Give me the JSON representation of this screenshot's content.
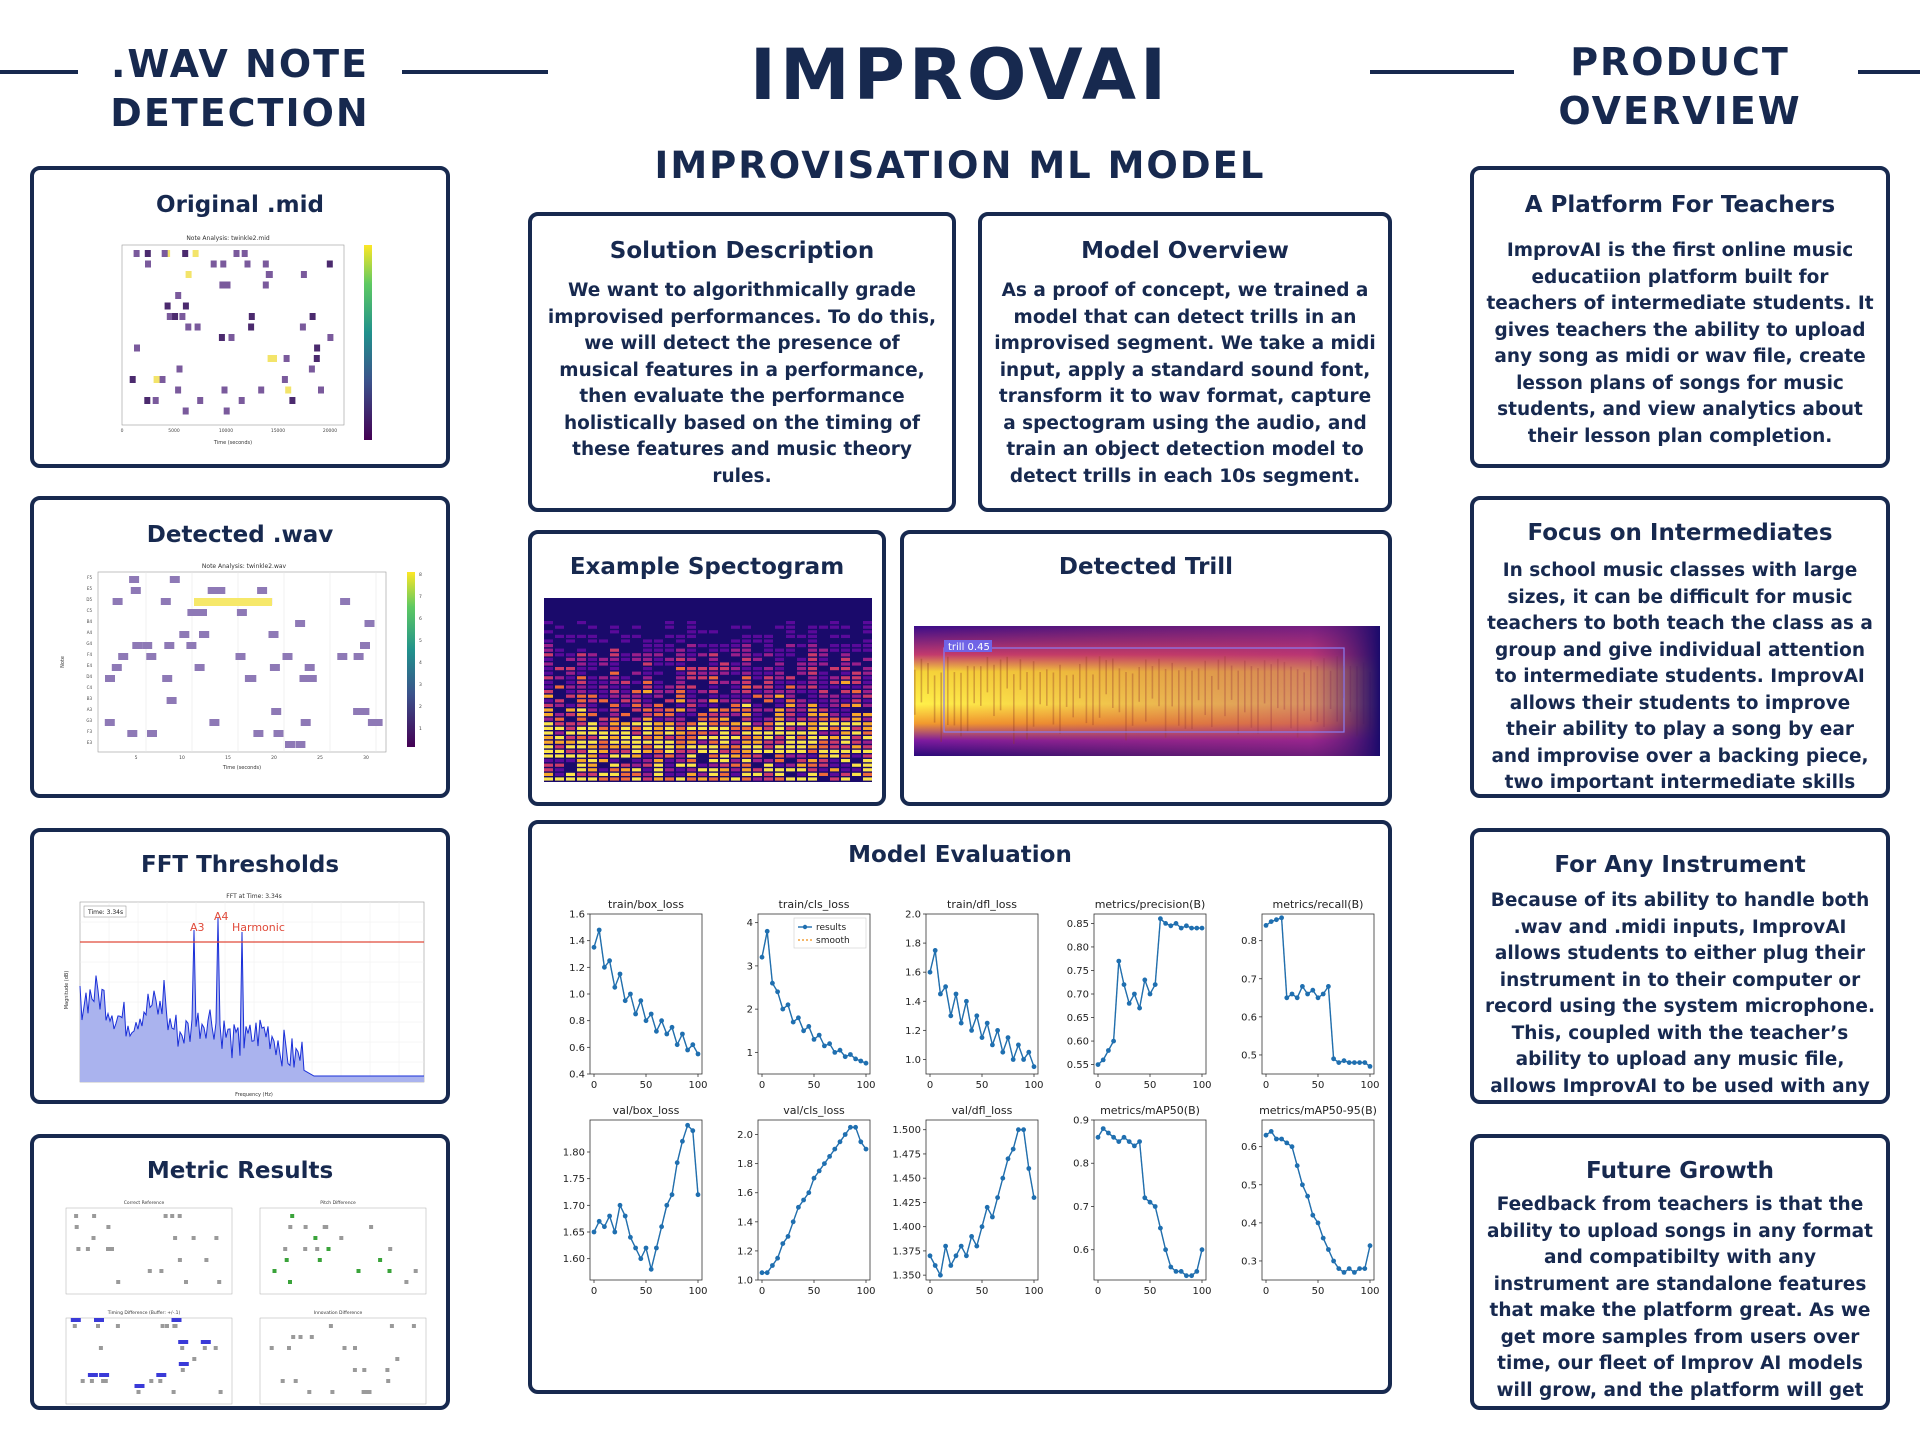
{
  "header": {
    "title": "IMPROVAI",
    "subtitle": "IMPROVISATION ML MODEL",
    "left_heading": [
      ".WAV NOTE",
      "DETECTION"
    ],
    "right_heading": [
      "PRODUCT",
      "OVERVIEW"
    ]
  },
  "left_panels": {
    "original_mid": {
      "title": "Original .mid",
      "plot_title": "Note Analysis: twinkle2.mid",
      "xlabel": "Time (seconds)",
      "ticks_x": [
        "0",
        "5000",
        "10000",
        "15000",
        "20000"
      ]
    },
    "detected_wav": {
      "title": "Detected .wav",
      "plot_title": "Note Analysis: twinkle2.wav",
      "xlabel": "Time (seconds)",
      "ylabel": "Note",
      "ticks_x": [
        "5",
        "10",
        "15",
        "20",
        "25",
        "30"
      ],
      "ticks_y": [
        "F5",
        "E5",
        "D5",
        "C5",
        "B4",
        "A4",
        "G4",
        "F4",
        "E4",
        "D4",
        "C4",
        "B3",
        "A3",
        "G3",
        "F3",
        "E3"
      ],
      "cbar_ticks": [
        "8",
        "7",
        "6",
        "5",
        "4",
        "3",
        "2",
        "1"
      ]
    },
    "fft": {
      "title": "FFT Thresholds",
      "plot_title": "FFT at Time: 3.34s",
      "time_box": "Time: 3.34s",
      "label_a3": "A3",
      "label_a4": "A4",
      "label_harmonic": "Harmonic",
      "xlabel": "Frequency (Hz)",
      "ylabel": "Magnitude (dB)"
    },
    "metrics": {
      "title": "Metric Results",
      "sub_titles": [
        "Correct Reference",
        "Pitch Difference",
        "Timing Difference (Buffer: +/-.1)",
        "Innovation Difference"
      ]
    }
  },
  "center": {
    "solution": {
      "title": "Solution Description",
      "body": "We want to algorithmically grade improvised performances. To do this, we will detect the presence of musical features in a performance, then evaluate the performance holistically based on the timing of these features and music theory rules."
    },
    "model_overview": {
      "title": "Model Overview",
      "body": "As a proof of concept, we trained a model that can detect trills in an improvised segment. We take a midi input, apply a standard sound font, transform it to wav format, capture a spectogram using the audio, and train an object detection model to detect trills in each 10s segment."
    },
    "spectrogram": {
      "title": "Example Spectogram"
    },
    "trill": {
      "title": "Detected Trill",
      "box_label": "trill 0.45"
    },
    "evaluation": {
      "title": "Model Evaluation",
      "legend_results": "results",
      "legend_smooth": "smooth"
    }
  },
  "right_panels": {
    "teachers": {
      "title": "A Platform For Teachers",
      "body": "ImprovAI is the first online music educatiion platform built for teachers of intermediate students. It gives teachers the ability to upload any song as midi or wav file, create lesson plans of songs for music students, and view analytics about their lesson plan completion."
    },
    "intermediates": {
      "title": "Focus on Intermediates",
      "body": "In school music classes with large sizes, it can be difficult for music teachers to both teach the class as a group and give individual attention to intermediate students. ImprovAI allows their students to improve their ability to play a song by ear and improvise over a backing piece, two important intermediate skills"
    },
    "instrument": {
      "title": "For Any Instrument",
      "body": "Because of its ability to handle both .wav and .midi inputs, ImprovAI allows students to either plug their instrument in to their computer or record using the system microphone. This, coupled with the teacher’s ability to upload any music file, allows ImprovAI to be used with any instrument"
    },
    "growth": {
      "title": "Future Growth",
      "body": "Feedback from teachers is that the ability to upload songs in any format and compatibilty with any instrument are standalone features that make the platform great. As we get more samples from users over time, our fleet of Improv AI models will grow, and the platform will get even better."
    }
  },
  "chart_data": [
    {
      "type": "line",
      "title": "train/box_loss",
      "x": [
        0,
        5,
        10,
        15,
        20,
        25,
        30,
        35,
        40,
        45,
        50,
        55,
        60,
        65,
        70,
        75,
        80,
        85,
        90,
        95,
        100
      ],
      "values": [
        1.35,
        1.48,
        1.2,
        1.25,
        1.05,
        1.15,
        0.95,
        1.0,
        0.85,
        0.95,
        0.8,
        0.85,
        0.72,
        0.8,
        0.7,
        0.75,
        0.62,
        0.7,
        0.58,
        0.62,
        0.55
      ],
      "ylim": [
        0.4,
        1.6
      ],
      "yticks": [
        "1.6",
        "1.4",
        "1.2",
        "1.0",
        "0.8",
        "0.6",
        "0.4"
      ],
      "xticks": [
        "0",
        "50",
        "100"
      ]
    },
    {
      "type": "line",
      "title": "train/cls_loss",
      "x": [
        0,
        5,
        10,
        15,
        20,
        25,
        30,
        35,
        40,
        45,
        50,
        55,
        60,
        65,
        70,
        75,
        80,
        85,
        90,
        95,
        100
      ],
      "values": [
        3.2,
        3.8,
        2.6,
        2.4,
        2.0,
        2.1,
        1.7,
        1.8,
        1.5,
        1.6,
        1.3,
        1.4,
        1.15,
        1.2,
        1.0,
        1.05,
        0.9,
        0.95,
        0.85,
        0.8,
        0.75
      ],
      "ylim": [
        0.5,
        4.2
      ],
      "yticks": [
        "4",
        "3",
        "2",
        "1"
      ],
      "xticks": [
        "0",
        "50",
        "100"
      ],
      "series_names": [
        "results",
        "smooth"
      ]
    },
    {
      "type": "line",
      "title": "train/dfl_loss",
      "x": [
        0,
        5,
        10,
        15,
        20,
        25,
        30,
        35,
        40,
        45,
        50,
        55,
        60,
        65,
        70,
        75,
        80,
        85,
        90,
        95,
        100
      ],
      "values": [
        1.6,
        1.75,
        1.45,
        1.5,
        1.3,
        1.45,
        1.25,
        1.4,
        1.2,
        1.3,
        1.15,
        1.25,
        1.1,
        1.2,
        1.05,
        1.15,
        1.0,
        1.1,
        1.0,
        1.05,
        0.95
      ],
      "ylim": [
        0.9,
        2.0
      ],
      "yticks": [
        "2.0",
        "1.8",
        "1.6",
        "1.4",
        "1.2",
        "1.0"
      ],
      "xticks": [
        "0",
        "50",
        "100"
      ]
    },
    {
      "type": "line",
      "title": "metrics/precision(B)",
      "x": [
        0,
        5,
        10,
        15,
        20,
        25,
        30,
        35,
        40,
        45,
        50,
        55,
        60,
        65,
        70,
        75,
        80,
        85,
        90,
        95,
        100
      ],
      "values": [
        0.55,
        0.56,
        0.58,
        0.6,
        0.77,
        0.72,
        0.68,
        0.7,
        0.67,
        0.73,
        0.7,
        0.72,
        0.86,
        0.85,
        0.845,
        0.85,
        0.84,
        0.845,
        0.84,
        0.84,
        0.84
      ],
      "ylim": [
        0.53,
        0.87
      ],
      "yticks": [
        "0.85",
        "0.80",
        "0.75",
        "0.70",
        "0.65",
        "0.60",
        "0.55"
      ],
      "xticks": [
        "0",
        "50",
        "100"
      ]
    },
    {
      "type": "line",
      "title": "metrics/recall(B)",
      "x": [
        0,
        5,
        10,
        15,
        20,
        25,
        30,
        35,
        40,
        45,
        50,
        55,
        60,
        65,
        70,
        75,
        80,
        85,
        90,
        95,
        100
      ],
      "values": [
        0.84,
        0.85,
        0.855,
        0.86,
        0.65,
        0.66,
        0.65,
        0.68,
        0.66,
        0.67,
        0.65,
        0.66,
        0.68,
        0.49,
        0.48,
        0.485,
        0.48,
        0.48,
        0.48,
        0.48,
        0.47
      ],
      "ylim": [
        0.45,
        0.87
      ],
      "yticks": [
        "0.8",
        "0.7",
        "0.6",
        "0.5"
      ],
      "xticks": [
        "0",
        "50",
        "100"
      ]
    },
    {
      "type": "line",
      "title": "val/box_loss",
      "x": [
        0,
        5,
        10,
        15,
        20,
        25,
        30,
        35,
        40,
        45,
        50,
        55,
        60,
        65,
        70,
        75,
        80,
        85,
        90,
        95,
        100
      ],
      "values": [
        1.65,
        1.67,
        1.66,
        1.68,
        1.65,
        1.7,
        1.68,
        1.64,
        1.62,
        1.6,
        1.62,
        1.58,
        1.62,
        1.66,
        1.7,
        1.72,
        1.78,
        1.82,
        1.85,
        1.84,
        1.72
      ],
      "ylim": [
        1.56,
        1.86
      ],
      "yticks": [
        "1.80",
        "1.75",
        "1.70",
        "1.65",
        "1.60"
      ],
      "xticks": [
        "0",
        "50",
        "100"
      ]
    },
    {
      "type": "line",
      "title": "val/cls_loss",
      "x": [
        0,
        5,
        10,
        15,
        20,
        25,
        30,
        35,
        40,
        45,
        50,
        55,
        60,
        65,
        70,
        75,
        80,
        85,
        90,
        95,
        100
      ],
      "values": [
        1.05,
        1.05,
        1.1,
        1.15,
        1.25,
        1.3,
        1.4,
        1.5,
        1.55,
        1.6,
        1.7,
        1.75,
        1.8,
        1.85,
        1.9,
        1.95,
        2.0,
        2.05,
        2.05,
        1.95,
        1.9
      ],
      "ylim": [
        1.0,
        2.1
      ],
      "yticks": [
        "2.0",
        "1.8",
        "1.6",
        "1.4",
        "1.2",
        "1.0"
      ],
      "xticks": [
        "0",
        "50",
        "100"
      ]
    },
    {
      "type": "line",
      "title": "val/dfl_loss",
      "x": [
        0,
        5,
        10,
        15,
        20,
        25,
        30,
        35,
        40,
        45,
        50,
        55,
        60,
        65,
        70,
        75,
        80,
        85,
        90,
        95,
        100
      ],
      "values": [
        1.37,
        1.36,
        1.35,
        1.38,
        1.36,
        1.37,
        1.38,
        1.37,
        1.39,
        1.38,
        1.4,
        1.42,
        1.41,
        1.43,
        1.45,
        1.47,
        1.48,
        1.5,
        1.5,
        1.46,
        1.43
      ],
      "ylim": [
        1.345,
        1.51
      ],
      "yticks": [
        "1.500",
        "1.475",
        "1.450",
        "1.425",
        "1.400",
        "1.375",
        "1.350"
      ],
      "xticks": [
        "0",
        "50",
        "100"
      ]
    },
    {
      "type": "line",
      "title": "metrics/mAP50(B)",
      "x": [
        0,
        5,
        10,
        15,
        20,
        25,
        30,
        35,
        40,
        45,
        50,
        55,
        60,
        65,
        70,
        75,
        80,
        85,
        90,
        95,
        100
      ],
      "values": [
        0.86,
        0.88,
        0.87,
        0.86,
        0.85,
        0.86,
        0.85,
        0.84,
        0.85,
        0.72,
        0.71,
        0.7,
        0.65,
        0.6,
        0.56,
        0.55,
        0.55,
        0.54,
        0.54,
        0.55,
        0.6
      ],
      "ylim": [
        0.53,
        0.9
      ],
      "yticks": [
        "0.9",
        "0.8",
        "0.7",
        "0.6"
      ],
      "xticks": [
        "0",
        "50",
        "100"
      ]
    },
    {
      "type": "line",
      "title": "metrics/mAP50-95(B)",
      "x": [
        0,
        5,
        10,
        15,
        20,
        25,
        30,
        35,
        40,
        45,
        50,
        55,
        60,
        65,
        70,
        75,
        80,
        85,
        90,
        95,
        100
      ],
      "values": [
        0.63,
        0.64,
        0.62,
        0.62,
        0.61,
        0.6,
        0.55,
        0.5,
        0.47,
        0.42,
        0.4,
        0.36,
        0.33,
        0.3,
        0.28,
        0.27,
        0.28,
        0.27,
        0.28,
        0.28,
        0.34
      ],
      "ylim": [
        0.25,
        0.67
      ],
      "yticks": [
        "0.6",
        "0.5",
        "0.4",
        "0.3"
      ],
      "xticks": [
        "0",
        "50",
        "100"
      ]
    }
  ]
}
